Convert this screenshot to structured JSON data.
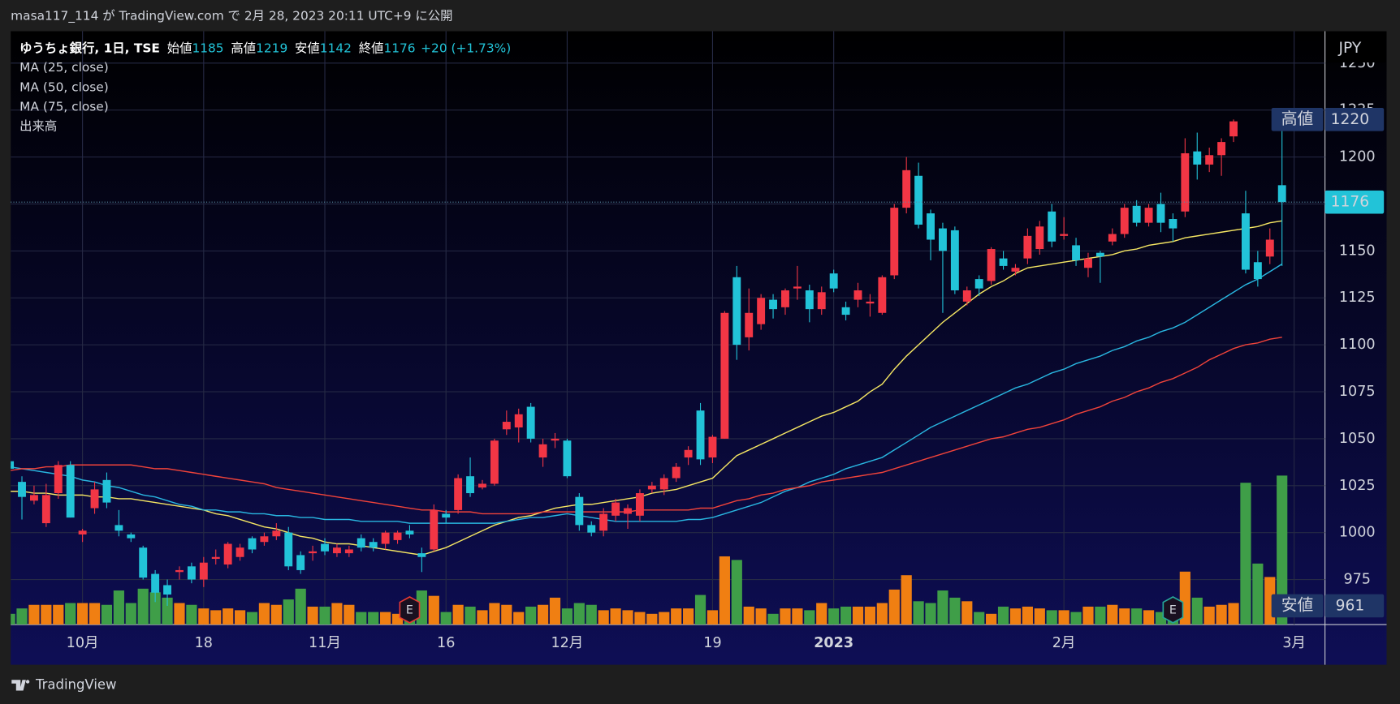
{
  "publisher": "masa117_114 が TradingView.com で 2月 28, 2023 20:11 UTC+9 に公開",
  "footer": "TradingView",
  "chart_data": {
    "type": "candlestick",
    "symbol": "ゆうちょ銀行, 1日, TSE",
    "ohlc_legend": [
      {
        "label": "始値",
        "value": 1185
      },
      {
        "label": "高値",
        "value": 1219
      },
      {
        "label": "安値",
        "value": 1142
      },
      {
        "label": "終値",
        "value": 1176
      }
    ],
    "change_label": "+20 (+1.73%)",
    "currency": "JPY",
    "ylim": [
      951,
      1267
    ],
    "yticks": [
      975,
      1000,
      1025,
      1050,
      1075,
      1100,
      1125,
      1150,
      1175,
      1200,
      1225,
      1250
    ],
    "grid": true,
    "categories": [
      null,
      null,
      null,
      null,
      null,
      null,
      "10月",
      null,
      null,
      null,
      null,
      null,
      null,
      null,
      null,
      null,
      "18",
      null,
      null,
      null,
      null,
      null,
      null,
      null,
      null,
      null,
      "11月",
      null,
      null,
      null,
      null,
      null,
      null,
      null,
      null,
      null,
      "16",
      null,
      null,
      null,
      null,
      null,
      null,
      null,
      null,
      null,
      "12月",
      null,
      null,
      null,
      null,
      null,
      null,
      null,
      null,
      null,
      null,
      null,
      "19",
      null,
      null,
      null,
      null,
      null,
      null,
      null,
      null,
      null,
      "2023",
      null,
      null,
      null,
      null,
      null,
      null,
      null,
      null,
      null,
      null,
      null,
      null,
      null,
      null,
      null,
      null,
      null,
      null,
      "2月",
      null,
      null,
      null,
      null,
      null,
      null,
      null,
      null,
      null,
      null,
      null,
      null,
      null,
      null,
      null,
      null,
      null,
      null,
      "3月"
    ],
    "candles": {
      "up_color": "#f23645",
      "down_color": "#22c3d8",
      "open": [
        1038,
        1027,
        1017,
        1005,
        1021,
        1036,
        999,
        1013,
        1028,
        1004,
        999,
        992,
        978,
        972,
        979,
        982,
        975,
        986,
        983,
        987,
        997,
        995,
        998,
        1000,
        988,
        989,
        994,
        989,
        989,
        997,
        995,
        994,
        996,
        1001,
        989,
        991,
        1010,
        1012,
        1030,
        1024,
        1026,
        1055,
        1056,
        1067,
        1040,
        1049,
        1049,
        1019,
        1004,
        1001,
        1009,
        1010,
        1009,
        1023,
        1023,
        1029,
        1040,
        1065,
        1040,
        1050,
        1136,
        1104,
        1111,
        1124,
        1120,
        1130,
        1129,
        1119,
        1138,
        1120,
        1124,
        1122,
        1117,
        1137,
        1173,
        1190,
        1170,
        1162,
        1161,
        1123,
        1135,
        1134,
        1146,
        1139,
        1146,
        1151,
        1171,
        1158,
        1153,
        1141,
        1149,
        1155,
        1159,
        1174,
        1165,
        1175,
        1167,
        1171,
        1203,
        1196,
        1201,
        1211,
        1170,
        1144,
        1147,
        1185,
        null
      ],
      "high": [
        1040,
        1030,
        1025,
        1026,
        1038,
        1038,
        1002,
        1027,
        1032,
        1012,
        1000,
        993,
        980,
        975,
        982,
        984,
        987,
        991,
        995,
        994,
        998,
        1000,
        1005,
        1003,
        990,
        993,
        997,
        994,
        993,
        999,
        997,
        1001,
        1001,
        1004,
        992,
        1015,
        1012,
        1031,
        1040,
        1028,
        1050,
        1065,
        1066,
        1069,
        1050,
        1053,
        1050,
        1021,
        1006,
        1013,
        1018,
        1015,
        1023,
        1027,
        1031,
        1037,
        1046,
        1069,
        1052,
        1118,
        1142,
        1130,
        1127,
        1127,
        1130,
        1142,
        1132,
        1131,
        1140,
        1123,
        1133,
        1127,
        1137,
        1175,
        1200,
        1197,
        1172,
        1165,
        1163,
        1131,
        1137,
        1152,
        1150,
        1143,
        1162,
        1166,
        1175,
        1168,
        1157,
        1149,
        1150,
        1162,
        1175,
        1177,
        1175,
        1181,
        1170,
        1210,
        1213,
        1205,
        1210,
        1220,
        1182,
        1150,
        1162,
        1219,
        null
      ],
      "low": [
        1030,
        1007,
        1015,
        1003,
        1018,
        1008,
        995,
        1010,
        1013,
        998,
        995,
        975,
        963,
        961,
        975,
        973,
        971,
        983,
        981,
        985,
        989,
        993,
        996,
        980,
        978,
        985,
        988,
        987,
        987,
        990,
        990,
        991,
        994,
        997,
        979,
        990,
        1005,
        1010,
        1019,
        1023,
        1025,
        1052,
        1048,
        1048,
        1035,
        1045,
        1029,
        1001,
        998,
        998,
        1006,
        1002,
        1006,
        1021,
        1020,
        1027,
        1036,
        1036,
        1037,
        1050,
        1092,
        1097,
        1108,
        1114,
        1116,
        1124,
        1112,
        1116,
        1128,
        1113,
        1120,
        1115,
        1116,
        1135,
        1170,
        1162,
        1145,
        1117,
        1127,
        1121,
        1126,
        1132,
        1140,
        1137,
        1143,
        1148,
        1152,
        1156,
        1142,
        1136,
        1133,
        1153,
        1157,
        1163,
        1163,
        1160,
        1155,
        1168,
        1188,
        1192,
        1190,
        1208,
        1138,
        1131,
        1143,
        1142,
        null
      ],
      "close": [
        1034,
        1019,
        1020,
        1020,
        1036,
        1008,
        1001,
        1023,
        1016,
        1001,
        997,
        976,
        968,
        967,
        980,
        975,
        984,
        987,
        994,
        992,
        991,
        998,
        1001,
        982,
        980,
        990,
        990,
        992,
        991,
        992,
        992,
        1000,
        1000,
        999,
        987,
        1012,
        1008,
        1029,
        1021,
        1026,
        1049,
        1059,
        1063,
        1050,
        1047,
        1050,
        1030,
        1004,
        1000,
        1010,
        1016,
        1013,
        1021,
        1025,
        1029,
        1035,
        1044,
        1039,
        1051,
        1117,
        1100,
        1117,
        1125,
        1119,
        1129,
        1131,
        1119,
        1128,
        1130,
        1116,
        1129,
        1123,
        1136,
        1173,
        1193,
        1164,
        1156,
        1150,
        1129,
        1129,
        1130,
        1151,
        1142,
        1141,
        1158,
        1163,
        1155,
        1159,
        1145,
        1146,
        1147,
        1159,
        1173,
        1165,
        1173,
        1165,
        1162,
        1202,
        1196,
        1201,
        1208,
        1219,
        1140,
        1135,
        1156,
        1176,
        null
      ]
    },
    "series": [
      {
        "name": "MA (25, close)",
        "color": "#f5e663",
        "values": [
          1022,
          1022,
          1021,
          1021,
          1020,
          1020,
          1020,
          1019,
          1019,
          1018,
          1018,
          1017,
          1016,
          1015,
          1014,
          1013,
          1012,
          1010,
          1009,
          1007,
          1005,
          1003,
          1002,
          1000,
          998,
          997,
          995,
          994,
          994,
          993,
          992,
          991,
          990,
          989,
          988,
          990,
          992,
          995,
          998,
          1001,
          1004,
          1006,
          1008,
          1009,
          1011,
          1013,
          1014,
          1015,
          1015,
          1016,
          1017,
          1018,
          1019,
          1021,
          1022,
          1023,
          1025,
          1027,
          1029,
          1035,
          1041,
          1044,
          1047,
          1050,
          1053,
          1056,
          1059,
          1062,
          1064,
          1067,
          1070,
          1075,
          1079,
          1087,
          1094,
          1100,
          1106,
          1112,
          1117,
          1122,
          1127,
          1131,
          1134,
          1138,
          1141,
          1142,
          1143,
          1144,
          1145,
          1146,
          1147,
          1148,
          1150,
          1151,
          1153,
          1154,
          1155,
          1157,
          1158,
          1159,
          1160,
          1161,
          1162,
          1163,
          1165,
          1166,
          null
        ]
      },
      {
        "name": "MA (50, close)",
        "color": "#29b6e0",
        "values": [
          1035,
          1034,
          1033,
          1032,
          1031,
          1030,
          1028,
          1027,
          1025,
          1024,
          1022,
          1020,
          1019,
          1017,
          1015,
          1014,
          1012,
          1012,
          1011,
          1011,
          1010,
          1010,
          1009,
          1009,
          1008,
          1008,
          1007,
          1007,
          1007,
          1006,
          1006,
          1006,
          1006,
          1005,
          1005,
          1005,
          1005,
          1005,
          1005,
          1005,
          1005,
          1006,
          1007,
          1008,
          1008,
          1009,
          1010,
          1009,
          1008,
          1007,
          1006,
          1006,
          1006,
          1006,
          1006,
          1006,
          1007,
          1007,
          1008,
          1010,
          1012,
          1014,
          1016,
          1019,
          1022,
          1024,
          1027,
          1029,
          1031,
          1034,
          1036,
          1038,
          1040,
          1044,
          1048,
          1052,
          1056,
          1059,
          1062,
          1065,
          1068,
          1071,
          1074,
          1077,
          1079,
          1082,
          1085,
          1087,
          1090,
          1092,
          1094,
          1097,
          1099,
          1102,
          1104,
          1107,
          1109,
          1112,
          1116,
          1120,
          1124,
          1128,
          1132,
          1135,
          1139,
          1143,
          null
        ]
      },
      {
        "name": "MA (75, close)",
        "color": "#f0433a",
        "values": [
          1033,
          1034,
          1034,
          1035,
          1035,
          1036,
          1036,
          1036,
          1036,
          1036,
          1036,
          1035,
          1034,
          1034,
          1033,
          1032,
          1031,
          1030,
          1029,
          1028,
          1027,
          1026,
          1024,
          1023,
          1022,
          1021,
          1020,
          1019,
          1018,
          1017,
          1016,
          1015,
          1014,
          1013,
          1012,
          1012,
          1011,
          1011,
          1011,
          1010,
          1010,
          1010,
          1010,
          1010,
          1011,
          1011,
          1011,
          1011,
          1011,
          1011,
          1011,
          1011,
          1012,
          1012,
          1012,
          1012,
          1012,
          1013,
          1013,
          1015,
          1017,
          1018,
          1020,
          1021,
          1023,
          1024,
          1025,
          1027,
          1028,
          1029,
          1030,
          1031,
          1032,
          1034,
          1036,
          1038,
          1040,
          1042,
          1044,
          1046,
          1048,
          1050,
          1051,
          1053,
          1055,
          1056,
          1058,
          1060,
          1063,
          1065,
          1067,
          1070,
          1072,
          1075,
          1077,
          1080,
          1082,
          1085,
          1088,
          1092,
          1095,
          1098,
          1100,
          1101,
          1103,
          1104,
          null
        ]
      }
    ],
    "volume": {
      "name": "出来高",
      "up_color": "#f07f12",
      "down_color": "#3f9e48",
      "values": [
        12,
        18,
        22,
        22,
        22,
        24,
        24,
        24,
        22,
        38,
        24,
        40,
        36,
        30,
        24,
        22,
        18,
        16,
        18,
        16,
        14,
        24,
        22,
        28,
        40,
        20,
        20,
        24,
        22,
        14,
        14,
        14,
        12,
        16,
        38,
        32,
        14,
        22,
        20,
        16,
        24,
        22,
        14,
        20,
        22,
        30,
        18,
        24,
        22,
        16,
        18,
        16,
        14,
        12,
        14,
        18,
        18,
        33,
        16,
        76,
        72,
        20,
        18,
        12,
        18,
        18,
        16,
        24,
        18,
        20,
        20,
        20,
        24,
        39,
        55,
        26,
        24,
        38,
        30,
        26,
        14,
        12,
        20,
        18,
        20,
        18,
        16,
        16,
        14,
        20,
        20,
        22,
        18,
        18,
        16,
        14,
        20,
        59,
        30,
        20,
        22,
        24,
        158,
        68,
        53,
        166,
        null
      ]
    },
    "last_price": 1176,
    "high_marker": {
      "label": "高値",
      "value": 1220
    },
    "low_marker": {
      "label": "安値",
      "value": 961
    },
    "earnings": {
      "label": "E",
      "indices": [
        33,
        96
      ],
      "colors": [
        "#e53935",
        "#26a69a"
      ]
    }
  }
}
